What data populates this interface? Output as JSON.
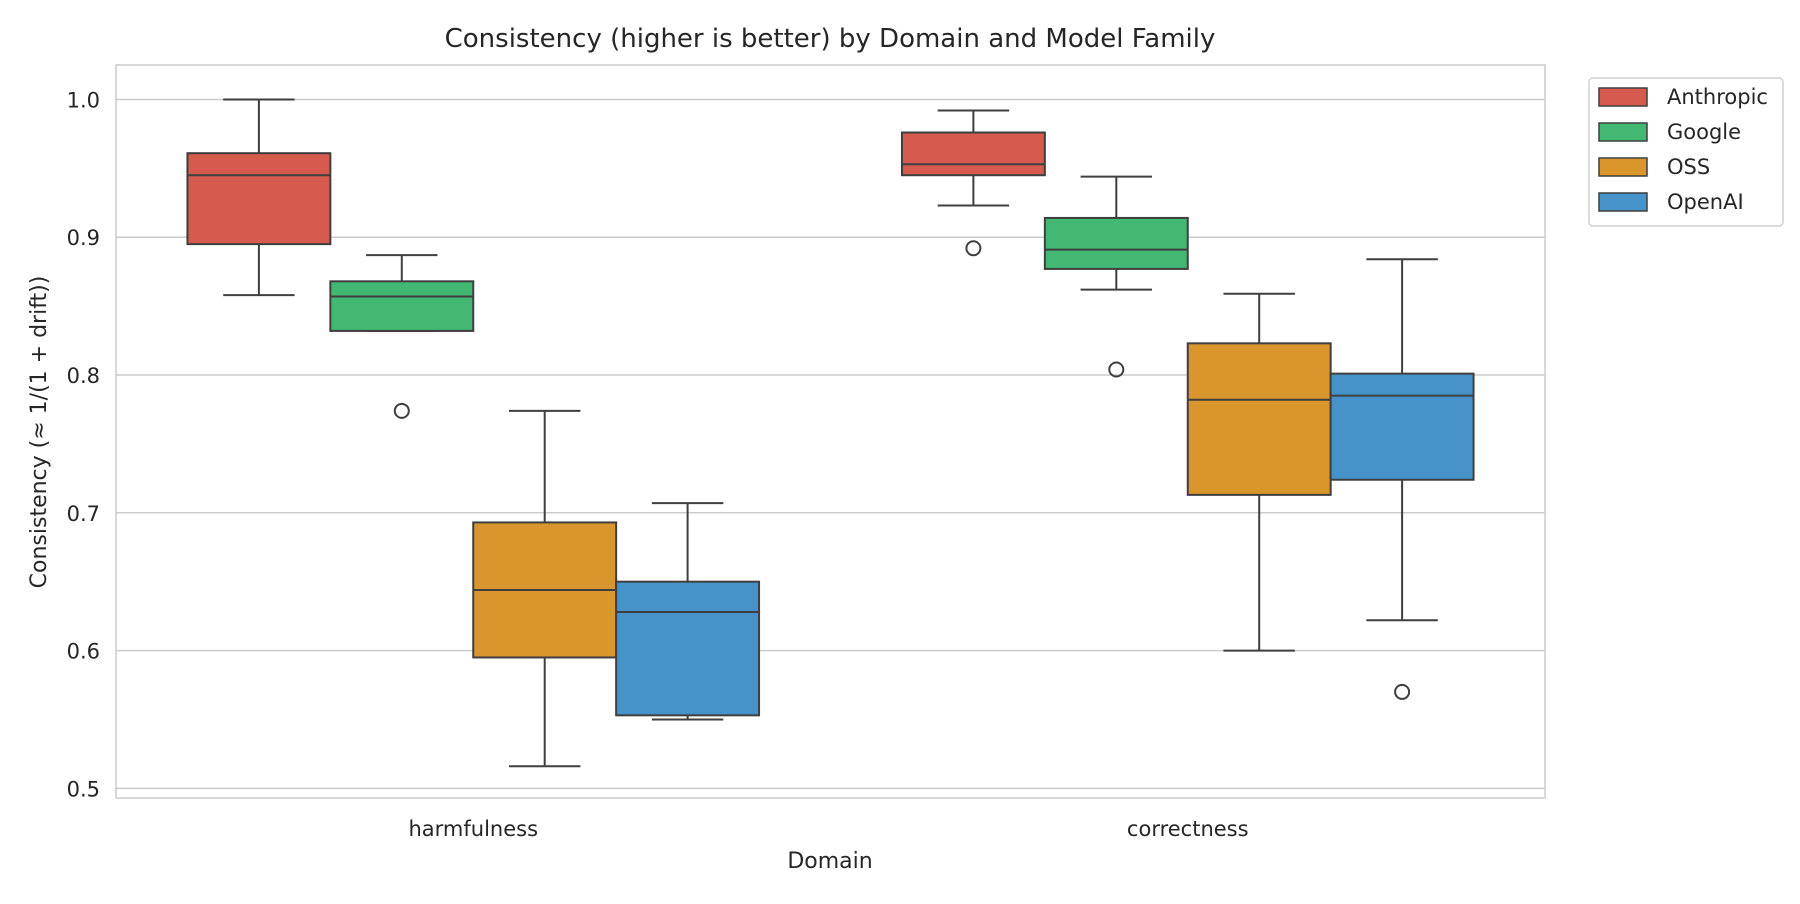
{
  "chart_data": {
    "type": "box",
    "title": "Consistency (higher is better) by Domain and Model Family",
    "xlabel": "Domain",
    "ylabel": "Consistency (≈ 1/(1 + drift))",
    "ylim": [
      0.493,
      1.025
    ],
    "yticks": [
      0.5,
      0.6,
      0.7,
      0.8,
      0.9,
      1.0
    ],
    "ytick_labels": [
      "0.5",
      "0.6",
      "0.7",
      "0.8",
      "0.9",
      "1.0"
    ],
    "grid": "horizontal",
    "legend_position": "outside top-right",
    "categories": [
      "harmfulness",
      "correctness"
    ],
    "series": [
      {
        "name": "Anthropic",
        "color": "#d65a4e",
        "boxes": [
          {
            "whisker_low": 0.858,
            "q1": 0.895,
            "median": 0.945,
            "q3": 0.961,
            "whisker_high": 1.0,
            "outliers": []
          },
          {
            "whisker_low": 0.923,
            "q1": 0.945,
            "median": 0.953,
            "q3": 0.976,
            "whisker_high": 0.992,
            "outliers": [
              0.892
            ]
          }
        ]
      },
      {
        "name": "Google",
        "color": "#43b872",
        "boxes": [
          {
            "whisker_low": 0.832,
            "q1": 0.832,
            "median": 0.857,
            "q3": 0.868,
            "whisker_high": 0.887,
            "outliers": [
              0.774
            ]
          },
          {
            "whisker_low": 0.862,
            "q1": 0.877,
            "median": 0.891,
            "q3": 0.914,
            "whisker_high": 0.944,
            "outliers": [
              0.804
            ]
          }
        ]
      },
      {
        "name": "OSS",
        "color": "#d9962c",
        "boxes": [
          {
            "whisker_low": 0.516,
            "q1": 0.595,
            "median": 0.644,
            "q3": 0.693,
            "whisker_high": 0.774,
            "outliers": []
          },
          {
            "whisker_low": 0.6,
            "q1": 0.713,
            "median": 0.782,
            "q3": 0.823,
            "whisker_high": 0.859,
            "outliers": []
          }
        ]
      },
      {
        "name": "OpenAI",
        "color": "#4593c9",
        "boxes": [
          {
            "whisker_low": 0.55,
            "q1": 0.553,
            "median": 0.628,
            "q3": 0.65,
            "whisker_high": 0.707,
            "outliers": []
          },
          {
            "whisker_low": 0.622,
            "q1": 0.724,
            "median": 0.785,
            "q3": 0.801,
            "whisker_high": 0.884,
            "outliers": [
              0.57
            ]
          }
        ]
      }
    ]
  }
}
